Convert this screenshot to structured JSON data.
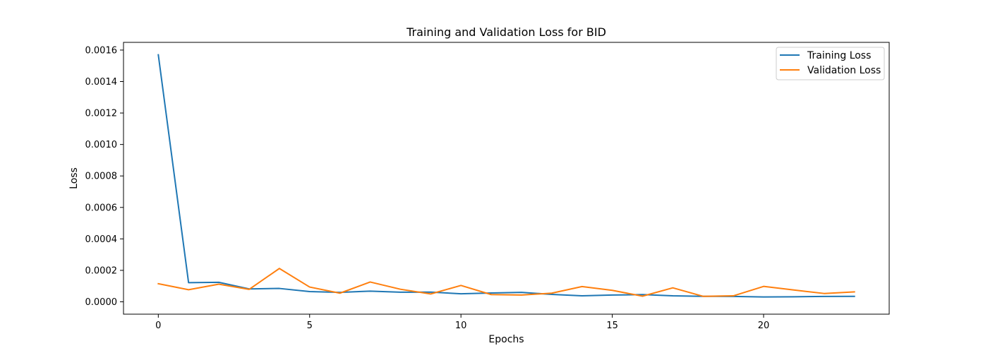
{
  "chart_data": {
    "type": "line",
    "title": "Training and Validation Loss for BID",
    "xlabel": "Epochs",
    "ylabel": "Loss",
    "xlim": [
      -1.15,
      24.15
    ],
    "ylim": [
      -7.85e-05,
      0.001649
    ],
    "x_ticks": [
      0,
      5,
      10,
      15,
      20
    ],
    "x_tick_labels": [
      "0",
      "5",
      "10",
      "15",
      "20"
    ],
    "y_ticks": [
      0,
      0.0002,
      0.0004,
      0.0006,
      0.0008,
      0.001,
      0.0012,
      0.0014,
      0.0016
    ],
    "y_tick_labels": [
      "0.0000",
      "0.0002",
      "0.0004",
      "0.0006",
      "0.0008",
      "0.0010",
      "0.0012",
      "0.0014",
      "0.0016"
    ],
    "legend_position": "top-right",
    "grid": false,
    "x": [
      0,
      1,
      2,
      3,
      4,
      5,
      6,
      7,
      8,
      9,
      10,
      11,
      12,
      13,
      14,
      15,
      16,
      17,
      18,
      19,
      20,
      21,
      22,
      23
    ],
    "series": [
      {
        "name": "Training Loss",
        "color": "#1f77b4",
        "values": [
          0.00157,
          0.000122,
          0.000124,
          8.2e-05,
          8.5e-05,
          6.5e-05,
          6e-05,
          6.8e-05,
          6.1e-05,
          6.2e-05,
          5.1e-05,
          5.6e-05,
          6e-05,
          4.7e-05,
          3.8e-05,
          4.3e-05,
          4.6e-05,
          3.8e-05,
          3.5e-05,
          3.4e-05,
          3.1e-05,
          3.2e-05,
          3.4e-05,
          3.5e-05
        ]
      },
      {
        "name": "Validation Loss",
        "color": "#ff7f0e",
        "values": [
          0.000115,
          7.7e-05,
          0.000112,
          7.9e-05,
          0.000212,
          9.4e-05,
          5.5e-05,
          0.000126,
          8e-05,
          5e-05,
          0.000104,
          4.6e-05,
          4.3e-05,
          5.5e-05,
          9.7e-05,
          7.3e-05,
          3.6e-05,
          8.9e-05,
          3.5e-05,
          3.8e-05,
          9.8e-05,
          7.5e-05,
          5.3e-05,
          6.3e-05
        ]
      }
    ]
  }
}
